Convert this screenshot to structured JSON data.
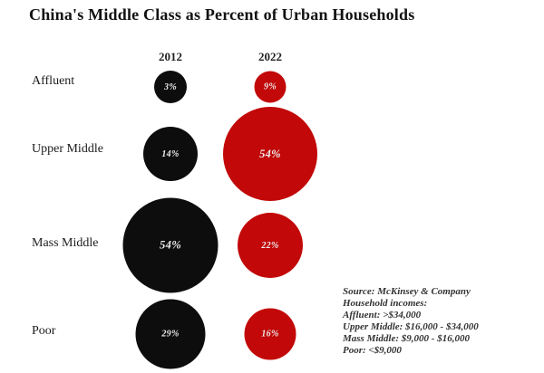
{
  "title": "China's Middle Class as Percent of Urban Households",
  "colors": {
    "black": "#0d0d0d",
    "red": "#c20808",
    "background": "#ffffff",
    "bubble_text": "#ededed"
  },
  "columns": [
    {
      "label": "2012"
    },
    {
      "label": "2022"
    }
  ],
  "rows": [
    {
      "label": "Affluent",
      "bubbles": [
        {
          "series": "2012",
          "value": 3,
          "display": "3%",
          "color": "black",
          "d": 36
        },
        {
          "series": "2022",
          "value": 9,
          "display": "9%",
          "color": "red",
          "d": 35
        }
      ]
    },
    {
      "label": "Upper Middle",
      "bubbles": [
        {
          "series": "2012",
          "value": 14,
          "display": "14%",
          "color": "black",
          "d": 60
        },
        {
          "series": "2022",
          "value": 54,
          "display": "54%",
          "color": "red",
          "d": 104
        }
      ]
    },
    {
      "label": "Mass Middle",
      "bubbles": [
        {
          "series": "2012",
          "value": 54,
          "display": "54%",
          "color": "black",
          "d": 105
        },
        {
          "series": "2022",
          "value": 22,
          "display": "22%",
          "color": "red",
          "d": 72
        }
      ]
    },
    {
      "label": "Poor",
      "bubbles": [
        {
          "series": "2012",
          "value": 29,
          "display": "29%",
          "color": "black",
          "d": 77
        },
        {
          "series": "2022",
          "value": 16,
          "display": "16%",
          "color": "red",
          "d": 57
        }
      ]
    }
  ],
  "source_note": {
    "lines": [
      "Source: McKinsey & Company",
      "Household incomes:",
      "Affluent: >$34,000",
      "Upper Middle: $16,000 - $34,000",
      "Mass Middle: $9,000 - $16,000",
      "Poor: <$9,000"
    ]
  },
  "chart_data": {
    "type": "bubble",
    "title": "China's Middle Class as Percent of Urban Households",
    "categories": [
      "Affluent",
      "Upper Middle",
      "Mass Middle",
      "Poor"
    ],
    "series": [
      {
        "name": "2012",
        "values": [
          3,
          14,
          54,
          29
        ],
        "color": "#0d0d0d"
      },
      {
        "name": "2022",
        "values": [
          9,
          54,
          22,
          16
        ],
        "color": "#c20808"
      }
    ],
    "value_unit": "percent of urban households",
    "annotations": [
      "Source: McKinsey & Company",
      "Household incomes:",
      "Affluent: >$34,000",
      "Upper Middle: $16,000 - $34,000",
      "Mass Middle: $9,000 - $16,000",
      "Poor: <$9,000"
    ],
    "layout": {
      "bubble_size_encodes_value": true,
      "grid": false,
      "legend_position": "column-headers"
    }
  }
}
